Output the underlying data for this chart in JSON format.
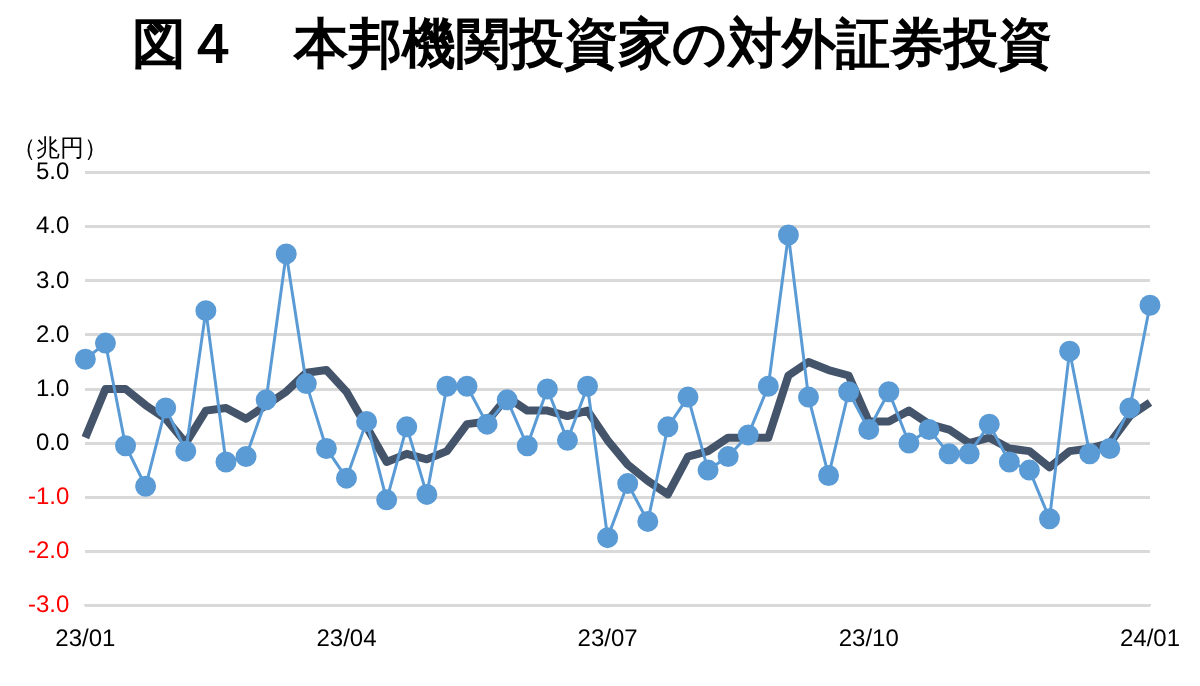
{
  "chart_data": {
    "type": "line",
    "title": "図４　本邦機関投資家の対外証券投資",
    "ylabel": "（兆円）",
    "categories": [
      "23/01",
      null,
      null,
      null,
      null,
      null,
      null,
      null,
      null,
      null,
      null,
      null,
      null,
      "23/04",
      null,
      null,
      null,
      null,
      null,
      null,
      null,
      null,
      null,
      null,
      null,
      null,
      "23/07",
      null,
      null,
      null,
      null,
      null,
      null,
      null,
      null,
      null,
      null,
      null,
      null,
      "23/10",
      null,
      null,
      null,
      null,
      null,
      null,
      null,
      null,
      null,
      null,
      null,
      null,
      null,
      "24/01"
    ],
    "series": [
      {
        "color": "#5b9bd5",
        "marker": "circle",
        "values": [
          1.55,
          1.85,
          -0.05,
          -0.8,
          0.65,
          -0.15,
          2.45,
          -0.35,
          -0.25,
          0.8,
          3.5,
          1.1,
          -0.1,
          -0.65,
          0.4,
          -1.05,
          0.3,
          -0.95,
          1.05,
          1.05,
          0.35,
          0.8,
          -0.05,
          1.0,
          0.05,
          1.05,
          -1.75,
          -0.75,
          -1.45,
          0.3,
          0.85,
          -0.5,
          -0.25,
          0.15,
          1.05,
          3.85,
          0.85,
          -0.6,
          0.95,
          0.25,
          0.95,
          0.0,
          0.25,
          -0.2,
          -0.2,
          0.35,
          -0.35,
          -0.5,
          -1.4,
          1.7,
          -0.2,
          -0.1,
          0.65,
          2.55
        ]
      },
      {
        "color": "#44546a",
        "marker": "none",
        "values": [
          0.1,
          1.0,
          1.0,
          0.7,
          0.45,
          0.0,
          0.6,
          0.65,
          0.45,
          0.7,
          0.95,
          1.3,
          1.35,
          0.95,
          0.3,
          -0.35,
          -0.2,
          -0.3,
          -0.15,
          0.35,
          0.4,
          0.85,
          0.6,
          0.6,
          0.5,
          0.6,
          0.05,
          -0.4,
          -0.7,
          -0.95,
          -0.25,
          -0.15,
          0.1,
          0.1,
          0.1,
          1.25,
          1.5,
          1.35,
          1.25,
          0.4,
          0.4,
          0.6,
          0.35,
          0.25,
          0.0,
          0.1,
          -0.1,
          -0.15,
          -0.45,
          -0.15,
          -0.1,
          0.0,
          0.5,
          0.75
        ]
      }
    ],
    "ylim": [
      -3,
      5
    ],
    "yticks": [
      {
        "value": 5,
        "label": "5.0"
      },
      {
        "value": 4,
        "label": "4.0"
      },
      {
        "value": 3,
        "label": "3.0"
      },
      {
        "value": 2,
        "label": "2.0"
      },
      {
        "value": 1,
        "label": "1.0"
      },
      {
        "value": 0,
        "label": "0.0"
      },
      {
        "value": -1,
        "label": "-1.0"
      },
      {
        "value": -2,
        "label": "-2.0"
      },
      {
        "value": -3,
        "label": "-3.0"
      }
    ],
    "grid": "y",
    "legend": false
  }
}
